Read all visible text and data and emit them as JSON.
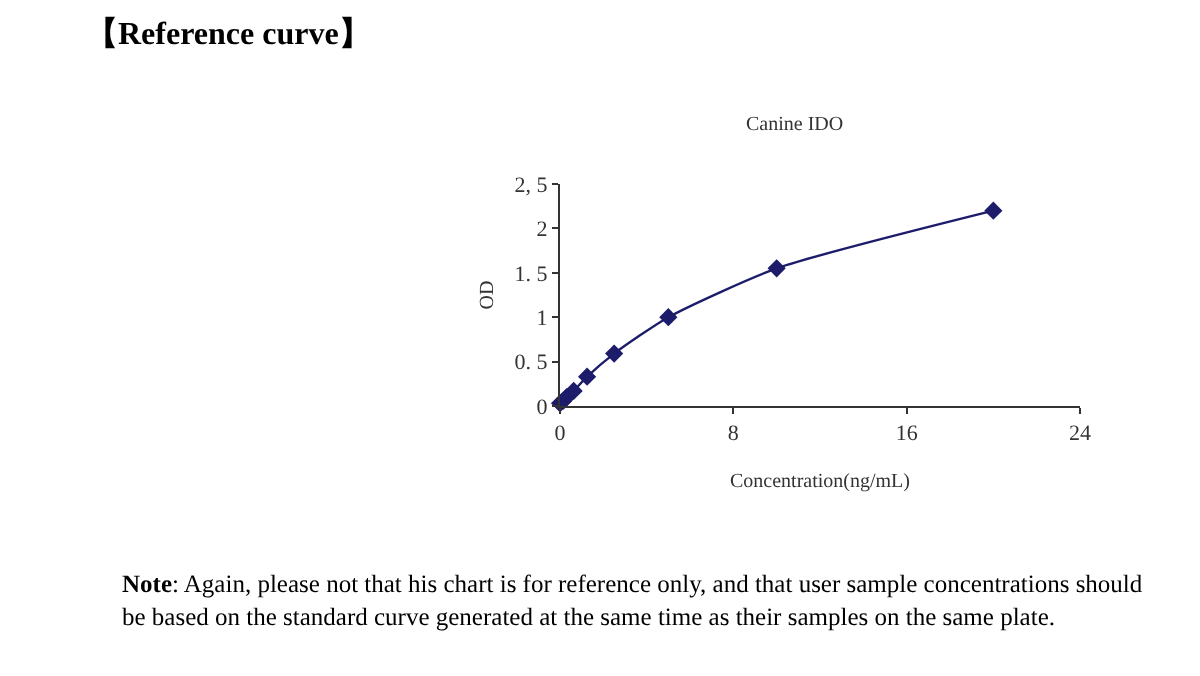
{
  "chart_data": {
    "type": "line",
    "title": "【Reference curve】",
    "subtitle": "Canine IDO",
    "xlabel": "Concentration(ng/mL)",
    "ylabel": "OD",
    "x": [
      0,
      0.16,
      0.31,
      0.63,
      1.25,
      2.5,
      5,
      10,
      20
    ],
    "series": [
      {
        "color": "#1c1c6b",
        "values": [
          0.03,
          0.06,
          0.1,
          0.17,
          0.33,
          0.59,
          1.0,
          1.55,
          2.2
        ]
      }
    ],
    "xlim": [
      0,
      24
    ],
    "xticks": [
      0,
      8,
      16,
      24
    ],
    "ylim": [
      0,
      2.5
    ],
    "yticks": [
      0,
      {
        "value": 0.5,
        "label": "0. 5"
      },
      1,
      {
        "value": 1.5,
        "label": "1. 5"
      },
      2,
      {
        "value": 2.5,
        "label": "2, 5"
      }
    ],
    "marker": "diamond",
    "line_style": "solid",
    "annotations": [
      "Note: Again, please not that his chart is for reference only, and that user sample concentrations should be based on the standard curve generated at the same time as their samples on the same plate."
    ]
  }
}
